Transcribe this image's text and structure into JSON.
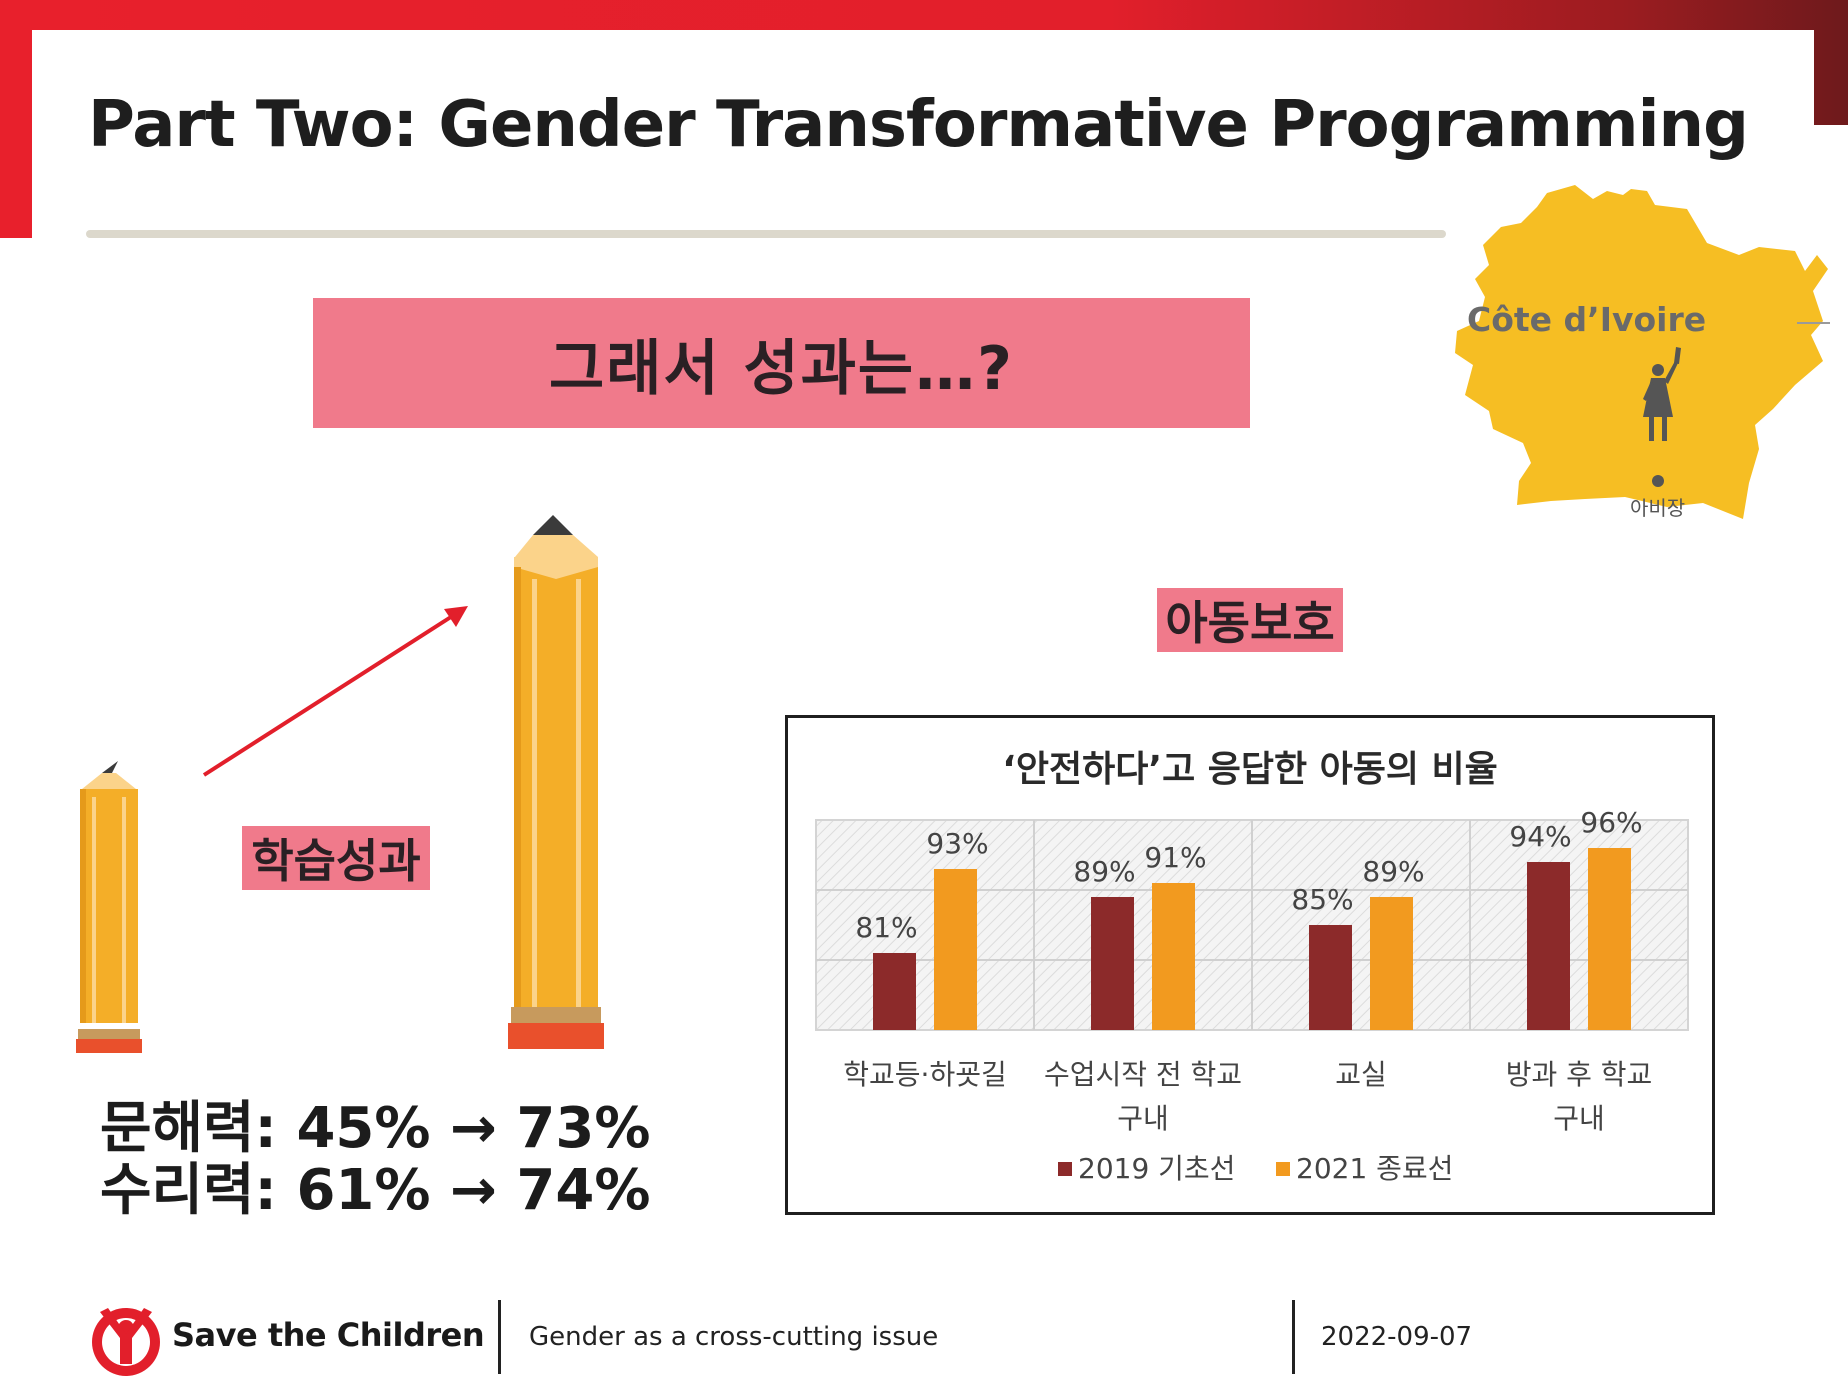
{
  "slide": {
    "title": "Part Two: Gender Transformative Programming",
    "banner": "그래서 성과는…?"
  },
  "map": {
    "country": "Côte d’Ivoire",
    "city": "아비장"
  },
  "learning": {
    "label": "학습성과",
    "stats": [
      {
        "text": "문해력: 45% → 73%",
        "metric": "문해력",
        "before": 45,
        "after": 73
      },
      {
        "text": "수리력: 61% → 74%",
        "metric": "수리력",
        "before": 61,
        "after": 74
      }
    ]
  },
  "protection": {
    "label": "아동보호"
  },
  "chart_data": {
    "type": "bar",
    "title": "‘안전하다’고 응답한 아동의 비율",
    "categories": [
      [
        "학교등·하굣길"
      ],
      [
        "수업시작 전 학교",
        "구내"
      ],
      [
        "교실"
      ],
      [
        "방과 후 학교",
        "구내"
      ]
    ],
    "series": [
      {
        "name": "2019 기초선",
        "values": [
          81,
          89,
          85,
          94
        ],
        "labels": [
          "81%",
          "89%",
          "85%",
          "94%"
        ],
        "color": "#8c2a2a"
      },
      {
        "name": "2021 종료선",
        "values": [
          93,
          91,
          89,
          96
        ],
        "labels": [
          "93%",
          "91%",
          "89%",
          "96%"
        ],
        "color": "#f29a1f"
      }
    ],
    "ylim": [
      70,
      100
    ],
    "grid": true,
    "legend": "bottom",
    "xlabel": "",
    "ylabel": ""
  },
  "colors": {
    "brand_red": "#e21f2b",
    "banner_pink": "#f07a8b",
    "map_yellow": "#f6be23",
    "pencil_body": "#f4ae28"
  },
  "footer": {
    "brand": "Save the Children",
    "subject": "Gender as a cross-cutting issue",
    "date": "2022-09-07",
    "logo_icon": "save-the-children-logo-icon"
  }
}
